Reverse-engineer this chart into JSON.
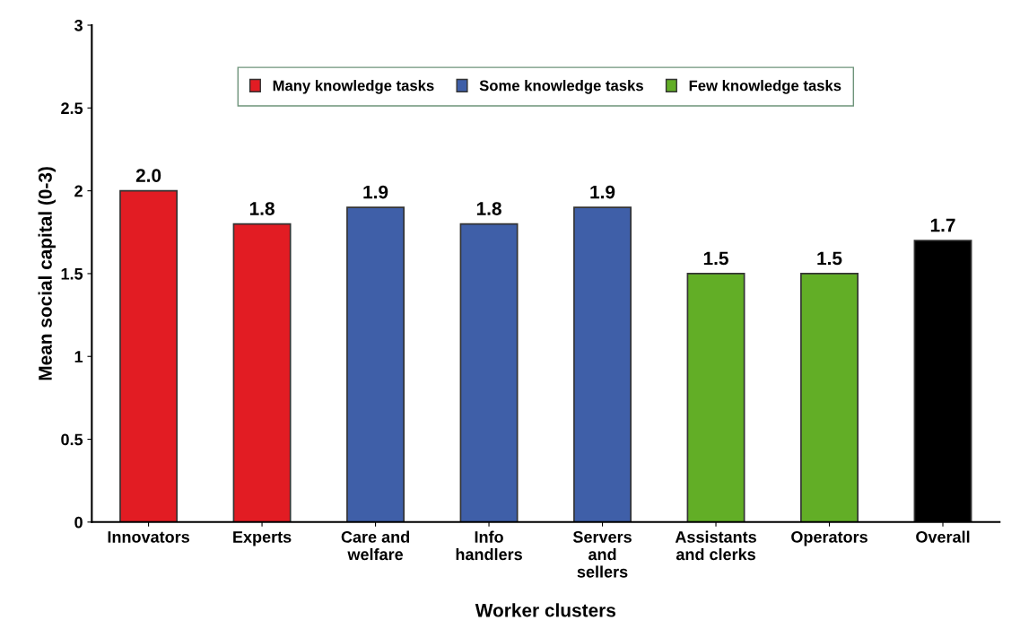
{
  "chart_data": {
    "type": "bar",
    "xlabel": "Worker clusters",
    "ylabel": "Mean social capital (0-3)",
    "categories": [
      "Innovators",
      "Experts",
      "Care and\nwelfare",
      "Info\nhandlers",
      "Servers\nand\nsellers",
      "Assistants\nand clerks",
      "Operators",
      "Overall"
    ],
    "series": [
      {
        "name": "Many knowledge tasks",
        "color": "#e21c23",
        "values": [
          2.0,
          1.8,
          null,
          null,
          null,
          null,
          null,
          null
        ],
        "value_labels": [
          "2.0",
          "1.8",
          null,
          null,
          null,
          null,
          null,
          null
        ]
      },
      {
        "name": "Some knowledge tasks",
        "color": "#3f5fa8",
        "values": [
          null,
          null,
          1.9,
          1.8,
          1.9,
          null,
          null,
          null
        ],
        "value_labels": [
          null,
          null,
          "1.9",
          "1.8",
          "1.9",
          null,
          null,
          null
        ]
      },
      {
        "name": "Few knowledge tasks",
        "color": "#62ae26",
        "values": [
          null,
          null,
          null,
          null,
          null,
          1.5,
          1.5,
          null
        ],
        "value_labels": [
          null,
          null,
          null,
          null,
          null,
          "1.5",
          "1.5",
          null
        ]
      },
      {
        "color": "#000000",
        "values": [
          null,
          null,
          null,
          null,
          null,
          null,
          null,
          1.7
        ],
        "value_labels": [
          null,
          null,
          null,
          null,
          null,
          null,
          null,
          "1.7"
        ]
      }
    ],
    "ylim": [
      0,
      3
    ],
    "yticks": [
      0,
      0.5,
      1,
      1.5,
      2,
      2.5,
      3
    ],
    "grid": false,
    "legend": "top"
  }
}
